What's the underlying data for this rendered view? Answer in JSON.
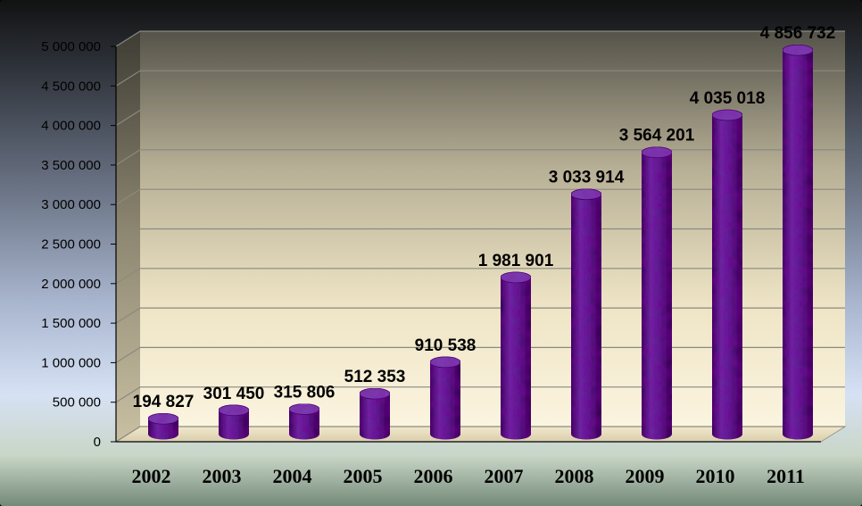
{
  "chart_data": {
    "type": "bar",
    "title": "",
    "xlabel": "",
    "ylabel": "",
    "categories": [
      "2002",
      "2003",
      "2004",
      "2005",
      "2006",
      "2007",
      "2008",
      "2009",
      "2010",
      "2011"
    ],
    "values": [
      194827,
      301450,
      315806,
      512353,
      910538,
      1981901,
      3033914,
      3564201,
      4035018,
      4856732
    ],
    "data_labels": [
      "194 827",
      "301 450",
      "315 806",
      "512 353",
      "910 538",
      "1 981 901",
      "3 033 914",
      "3 564 201",
      "4 035 018",
      "4 856 732"
    ],
    "ylim": [
      0,
      5000000
    ],
    "yticks": [
      0,
      500000,
      1000000,
      1500000,
      2000000,
      2500000,
      3000000,
      3500000,
      4000000,
      4500000,
      5000000
    ],
    "ytick_labels": [
      "0",
      "500 000",
      "1 000 000",
      "1 500 000",
      "2 000 000",
      "2 500 000",
      "3 000 000",
      "3 500 000",
      "4 000 000",
      "4 500 000",
      "5 000 000"
    ],
    "grid": true,
    "legend": "none",
    "style": "3d-cylinder",
    "colors": {
      "bar": "#5b1f8f",
      "bar_dark": "#2e0a52",
      "bar_top": "#7a3fb0",
      "wall_top": "#5c5a4a",
      "wall_bottom": "#fbf3dd",
      "gridline": "#8a8a80"
    }
  }
}
